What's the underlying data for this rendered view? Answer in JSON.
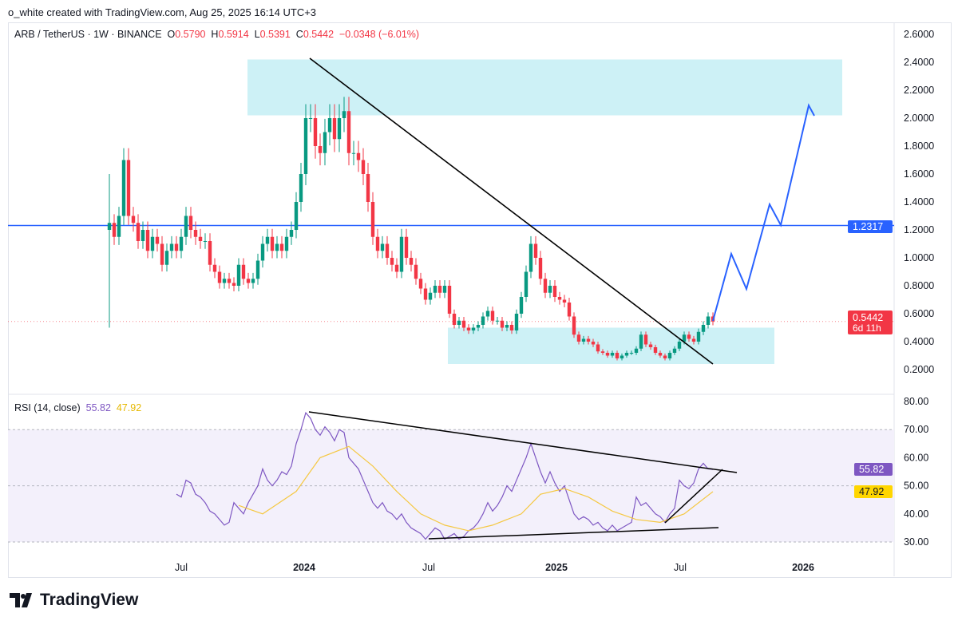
{
  "credit": "o_white created with TradingView.com, Aug 25, 2025 16:14 UTC+3",
  "legend": {
    "symbol": "ARB / TetherUS · 1W · BINANCE",
    "o_label": "O",
    "o": "0.5790",
    "h_label": "H",
    "h": "0.5914",
    "l_label": "L",
    "l": "0.5391",
    "c_label": "C",
    "c": "0.5442",
    "change": "−0.0348 (−6.01%)"
  },
  "rsi_legend": {
    "label": "RSI (14, close)",
    "rsi": "55.82",
    "ma": "47.92"
  },
  "price_labels": {
    "current": "0.5442",
    "countdown": "6d 11h",
    "level": "1.2317",
    "rsi": "55.82",
    "rsi_ma": "47.92"
  },
  "logo": "TradingView",
  "colors": {
    "up": "#089981",
    "down": "#f23645",
    "level": "#2962ff",
    "zone": "#c8f0f5",
    "rsi": "#7e57c2",
    "rsi_ma": "#f5c842"
  },
  "chart_data": [
    {
      "type": "candlestick",
      "title": "ARB / TetherUS 1W",
      "ylim": [
        0.2,
        2.6
      ],
      "y_ticks": [
        "2.6000",
        "2.4000",
        "2.2000",
        "2.0000",
        "1.8000",
        "1.6000",
        "1.4000",
        "1.2000",
        "1.0000",
        "0.8000",
        "0.6000",
        "0.4000",
        "0.2000"
      ],
      "x_ticks": [
        "Jul",
        "2024",
        "Jul",
        "2025",
        "Jul",
        "2026"
      ],
      "open_first": 1.2,
      "closes": [
        1.25,
        1.15,
        1.3,
        1.7,
        1.3,
        1.25,
        1.12,
        1.2,
        1.05,
        1.15,
        1.1,
        0.95,
        1.05,
        1.1,
        1.05,
        1.15,
        1.3,
        1.2,
        1.15,
        1.12,
        1.12,
        0.95,
        0.9,
        0.82,
        0.85,
        0.82,
        0.8,
        0.95,
        0.85,
        0.82,
        0.85,
        0.98,
        1.1,
        1.15,
        1.05,
        1.1,
        1.05,
        1.15,
        1.2,
        1.4,
        1.6,
        2.0,
        2.0,
        1.8,
        1.75,
        1.9,
        2.0,
        1.85,
        2.0,
        2.05,
        1.75,
        1.75,
        1.7,
        1.6,
        1.4,
        1.15,
        1.05,
        1.1,
        1.0,
        0.95,
        0.9,
        1.15,
        1.0,
        0.95,
        0.85,
        0.78,
        0.7,
        0.75,
        0.8,
        0.75,
        0.8,
        0.6,
        0.52,
        0.55,
        0.5,
        0.48,
        0.5,
        0.52,
        0.58,
        0.62,
        0.55,
        0.55,
        0.5,
        0.52,
        0.48,
        0.6,
        0.72,
        0.9,
        1.1,
        1.0,
        0.85,
        0.75,
        0.8,
        0.72,
        0.7,
        0.68,
        0.58,
        0.45,
        0.4,
        0.42,
        0.4,
        0.38,
        0.33,
        0.32,
        0.3,
        0.32,
        0.28,
        0.3,
        0.32,
        0.32,
        0.35,
        0.45,
        0.38,
        0.36,
        0.32,
        0.3,
        0.28,
        0.32,
        0.35,
        0.4,
        0.45,
        0.42,
        0.4,
        0.47,
        0.52,
        0.58,
        0.5442
      ],
      "horizontal_level": 1.2317,
      "zones": [
        [
          2.02,
          2.42
        ],
        [
          0.24,
          0.5
        ]
      ]
    },
    {
      "type": "line",
      "title": "RSI (14, close)",
      "ylim": [
        30,
        80
      ],
      "y_ticks": [
        "80.00",
        "70.00",
        "60.00",
        "50.00",
        "40.00",
        "30.00"
      ],
      "rsi_start_week": 14,
      "rsi": [
        47,
        46,
        52,
        51,
        47,
        46,
        44,
        41,
        40,
        38,
        36,
        37,
        44,
        42,
        40,
        44,
        47,
        50,
        56,
        52,
        50,
        52,
        55,
        54,
        57,
        65,
        70,
        76,
        74,
        70,
        68,
        71,
        69,
        66,
        70,
        69,
        60,
        58,
        56,
        52,
        48,
        44,
        42,
        44,
        41,
        40,
        38,
        40,
        37,
        35,
        34,
        33,
        31,
        33,
        35,
        34,
        31,
        32,
        33,
        31,
        32,
        34,
        35,
        37,
        40,
        44,
        41,
        43,
        46,
        50,
        48,
        52,
        56,
        60,
        65,
        60,
        55,
        51,
        55,
        51,
        48,
        50,
        45,
        40,
        38,
        39,
        38,
        36,
        37,
        35,
        34,
        36,
        34,
        35,
        36,
        37,
        46,
        43,
        44,
        42,
        40,
        39,
        37,
        40,
        42,
        52,
        50,
        49,
        51,
        56,
        58,
        56,
        55.82
      ],
      "ma_keyframes": [
        [
          27,
          43
        ],
        [
          32,
          40
        ],
        [
          39,
          48
        ],
        [
          44,
          60
        ],
        [
          50,
          64
        ],
        [
          55,
          57
        ],
        [
          60,
          48
        ],
        [
          65,
          40
        ],
        [
          70,
          36
        ],
        [
          75,
          34
        ],
        [
          80,
          36
        ],
        [
          86,
          40
        ],
        [
          90,
          47
        ],
        [
          95,
          49
        ],
        [
          100,
          46
        ],
        [
          105,
          41
        ],
        [
          110,
          38
        ],
        [
          115,
          37
        ],
        [
          120,
          40
        ],
        [
          126,
          47.92
        ]
      ]
    }
  ]
}
